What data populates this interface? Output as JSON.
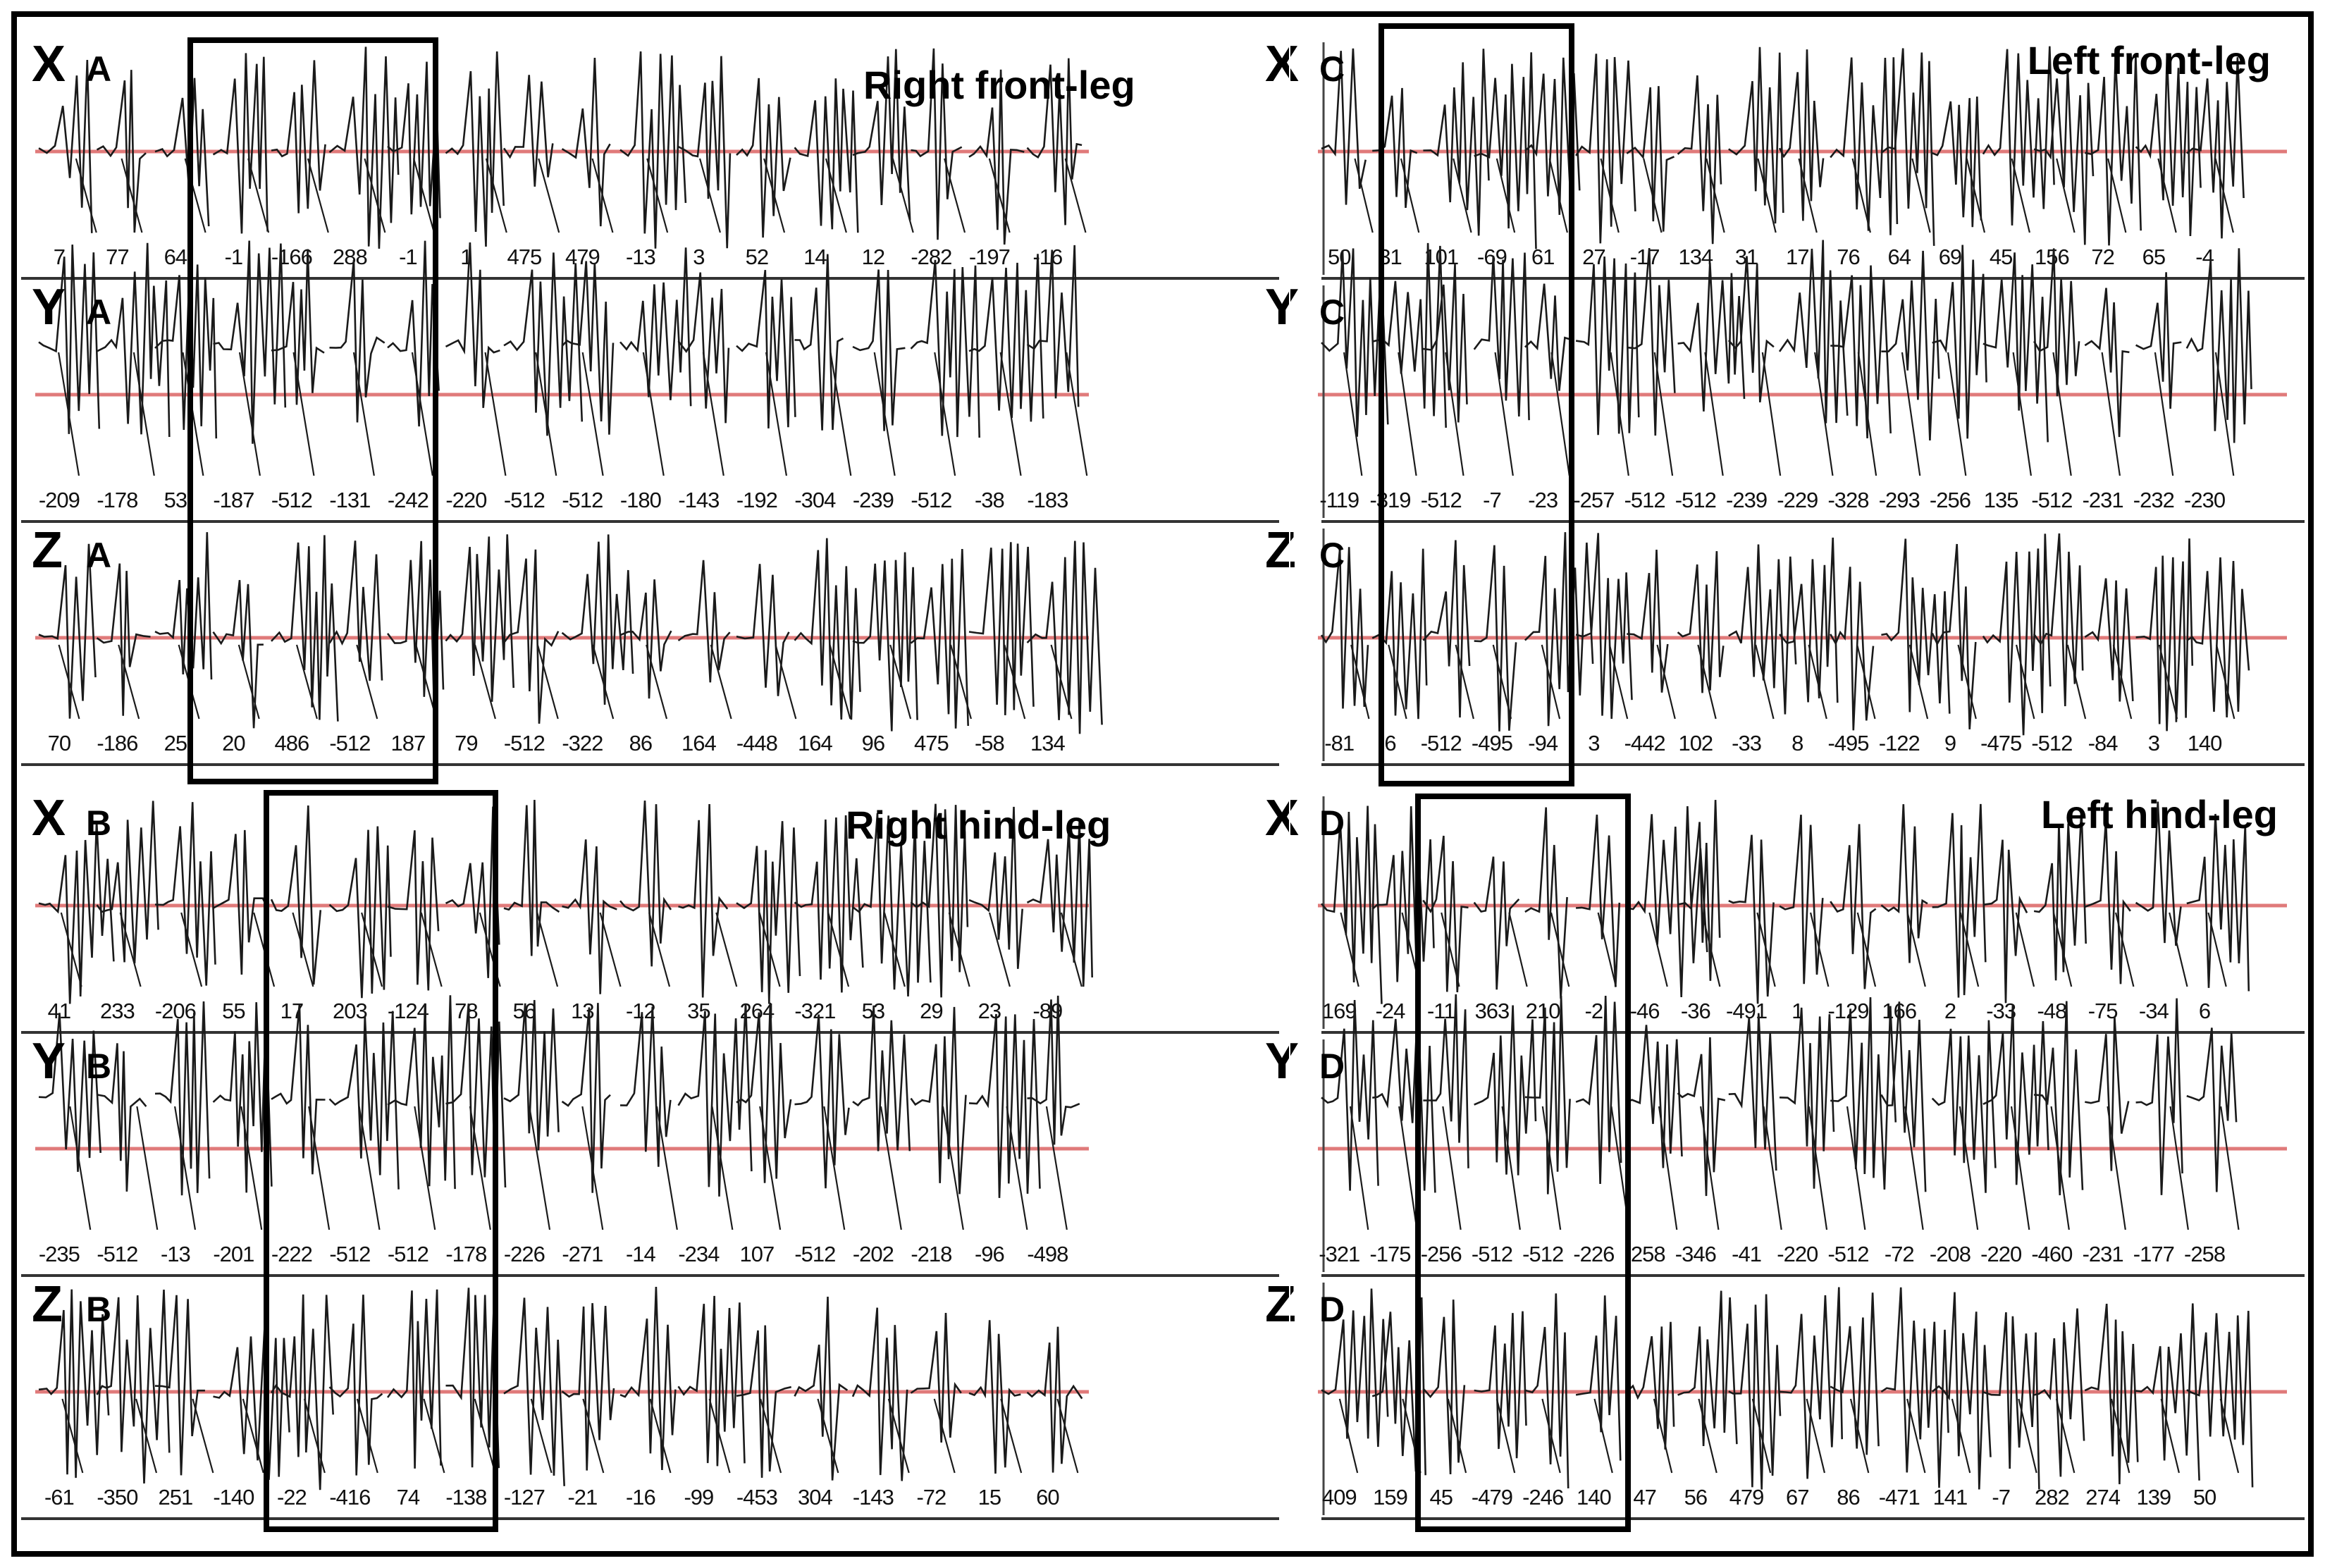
{
  "chart_data": [
    {
      "type": "line",
      "title": "Right front-leg",
      "leg_label": "A",
      "series": [
        {
          "name": "X",
          "tick_labels": [
            "7",
            "77",
            "64",
            "-1",
            "-166",
            "288",
            "-1",
            "1",
            "475",
            "479",
            "-13",
            "3",
            "52",
            "14",
            "12",
            "-282",
            "-197",
            "-16"
          ]
        },
        {
          "name": "Y",
          "tick_labels": [
            "-209",
            "-178",
            "53",
            "-187",
            "-512",
            "-131",
            "-242",
            "-220",
            "-512",
            "-512",
            "-180",
            "-143",
            "-192",
            "-304",
            "-239",
            "-512",
            "-38",
            "-183"
          ]
        },
        {
          "name": "Z",
          "tick_labels": [
            "70",
            "-186",
            "25",
            "20",
            "486",
            "-512",
            "187",
            "79",
            "-512",
            "-322",
            "86",
            "164",
            "-448",
            "164",
            "96",
            "475",
            "-58",
            "134"
          ]
        }
      ],
      "highlight": {
        "from_tick": "-1",
        "to_tick": "-1"
      },
      "reference_line": "red horizontal baseline"
    },
    {
      "type": "line",
      "title": "Left front-leg",
      "leg_label": "C",
      "series": [
        {
          "name": "X",
          "tick_labels": [
            "50",
            "31",
            "101",
            "-69",
            "61",
            "27",
            "-17",
            "134",
            "31",
            "17",
            "76",
            "64",
            "69",
            "45",
            "156",
            "72",
            "65",
            "-4"
          ]
        },
        {
          "name": "Y",
          "tick_labels": [
            "-119",
            "-319",
            "-512",
            "-7",
            "-23",
            "-257",
            "-512",
            "-512",
            "-239",
            "-229",
            "-328",
            "-293",
            "-256",
            "135",
            "-512",
            "-231",
            "-232",
            "-230"
          ]
        },
        {
          "name": "Z",
          "tick_labels": [
            "-81",
            "6",
            "-512",
            "-495",
            "-94",
            "3",
            "-442",
            "102",
            "-33",
            "8",
            "-495",
            "-122",
            "9",
            "-475",
            "-512",
            "-84",
            "3",
            "140"
          ]
        }
      ],
      "reference_line": "red horizontal baseline"
    },
    {
      "type": "line",
      "title": "Right hind-leg",
      "leg_label": "B",
      "series": [
        {
          "name": "X",
          "tick_labels": [
            "41",
            "233",
            "-206",
            "55",
            "17",
            "203",
            "-124",
            "78",
            "56",
            "13",
            "-12",
            "35",
            "264",
            "-321",
            "53",
            "29",
            "23",
            "-89"
          ]
        },
        {
          "name": "Y",
          "tick_labels": [
            "-235",
            "-512",
            "-13",
            "-201",
            "-222",
            "-512",
            "-512",
            "-178",
            "-226",
            "-271",
            "-14",
            "-234",
            "107",
            "-512",
            "-202",
            "-218",
            "-96",
            "-498"
          ]
        },
        {
          "name": "Z",
          "tick_labels": [
            "-61",
            "-350",
            "251",
            "-140",
            "-22",
            "-416",
            "74",
            "-138",
            "-127",
            "-21",
            "-16",
            "-99",
            "-453",
            "304",
            "-143",
            "-72",
            "15",
            "60"
          ]
        }
      ],
      "reference_line": "red horizontal baseline"
    },
    {
      "type": "line",
      "title": "Left hind-leg",
      "leg_label": "D",
      "series": [
        {
          "name": "X",
          "tick_labels": [
            "169",
            "-24",
            "-11",
            "363",
            "210",
            "-2",
            "-46",
            "-36",
            "-491",
            "1",
            "-129",
            "166",
            "2",
            "-33",
            "-48",
            "-75",
            "-34",
            "6"
          ]
        },
        {
          "name": "Y",
          "tick_labels": [
            "-321",
            "-175",
            "-256",
            "-512",
            "-512",
            "-226",
            "-258",
            "-346",
            "-41",
            "-220",
            "-512",
            "-72",
            "-208",
            "-220",
            "-460",
            "-231",
            "-177",
            "-258"
          ]
        },
        {
          "name": "Z",
          "tick_labels": [
            "409",
            "159",
            "45",
            "-479",
            "-246",
            "140",
            "47",
            "56",
            "479",
            "67",
            "86",
            "-471",
            "141",
            "-7",
            "282",
            "274",
            "139",
            "50"
          ]
        }
      ],
      "reference_line": "red horizontal baseline"
    }
  ],
  "colors": {
    "trace": "#1a1a1a",
    "baseline": "#e07a7a",
    "frame": "#000000",
    "divider": "#333333"
  }
}
